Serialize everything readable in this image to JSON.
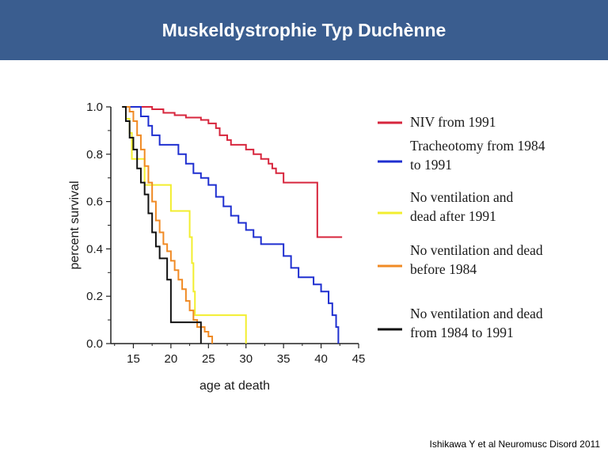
{
  "header": {
    "title": "Muskeldystrophie Typ Duchènne"
  },
  "citation": "Ishikawa Y et al Neuromusc Disord 2011",
  "chart_data": {
    "type": "line",
    "step": true,
    "xlabel": "age at death",
    "ylabel": "percent survival",
    "xlim": [
      12,
      45
    ],
    "ylim": [
      0,
      1
    ],
    "x_ticks": [
      15,
      20,
      25,
      30,
      35,
      40,
      45
    ],
    "y_ticks": [
      0.0,
      0.2,
      0.4,
      0.6,
      0.8,
      1.0
    ],
    "y_tick_labels": [
      "0.0",
      "0.2",
      "0.4",
      "0.6",
      "0.8",
      "1.0"
    ],
    "grid": false,
    "legend_position": "right",
    "series": [
      {
        "name_lines": [
          "NIV from 1991"
        ],
        "color": "#d7263d",
        "points": [
          [
            16,
            1.0
          ],
          [
            17.5,
            0.99
          ],
          [
            19,
            0.975
          ],
          [
            20.5,
            0.965
          ],
          [
            22,
            0.955
          ],
          [
            24,
            0.945
          ],
          [
            25,
            0.93
          ],
          [
            26,
            0.91
          ],
          [
            26.5,
            0.88
          ],
          [
            27.5,
            0.86
          ],
          [
            28,
            0.84
          ],
          [
            30,
            0.82
          ],
          [
            31,
            0.8
          ],
          [
            32,
            0.78
          ],
          [
            33,
            0.76
          ],
          [
            33.5,
            0.74
          ],
          [
            34,
            0.72
          ],
          [
            35,
            0.7
          ],
          [
            35,
            0.68
          ],
          [
            39.5,
            0.68
          ],
          [
            39.5,
            0.45
          ],
          [
            42.8,
            0.45
          ]
        ]
      },
      {
        "name_lines": [
          "Tracheotomy from 1984",
          "to 1991"
        ],
        "color": "#1f2fd0",
        "points": [
          [
            14,
            1.0
          ],
          [
            16,
            1.0
          ],
          [
            16,
            0.96
          ],
          [
            17,
            0.92
          ],
          [
            17.5,
            0.88
          ],
          [
            18.5,
            0.84
          ],
          [
            21,
            0.84
          ],
          [
            21,
            0.8
          ],
          [
            22,
            0.76
          ],
          [
            23,
            0.72
          ],
          [
            24,
            0.7
          ],
          [
            25,
            0.67
          ],
          [
            26,
            0.62
          ],
          [
            27,
            0.58
          ],
          [
            28,
            0.54
          ],
          [
            29,
            0.51
          ],
          [
            30,
            0.48
          ],
          [
            31,
            0.45
          ],
          [
            32,
            0.42
          ],
          [
            35,
            0.42
          ],
          [
            35,
            0.37
          ],
          [
            36,
            0.32
          ],
          [
            37,
            0.28
          ],
          [
            38,
            0.28
          ],
          [
            39,
            0.25
          ],
          [
            40,
            0.22
          ],
          [
            41,
            0.22
          ],
          [
            41,
            0.17
          ],
          [
            41.5,
            0.12
          ],
          [
            42,
            0.07
          ],
          [
            42.3,
            0.0
          ]
        ]
      },
      {
        "name_lines": [
          "No ventilation and",
          "dead after 1991"
        ],
        "color": "#f2ee2f",
        "points": [
          [
            13.5,
            1.0
          ],
          [
            14,
            0.95
          ],
          [
            14.5,
            0.89
          ],
          [
            14.8,
            0.78
          ],
          [
            16.5,
            0.78
          ],
          [
            16.5,
            0.67
          ],
          [
            20,
            0.67
          ],
          [
            20,
            0.56
          ],
          [
            22,
            0.56
          ],
          [
            22.5,
            0.45
          ],
          [
            22.8,
            0.34
          ],
          [
            23,
            0.22
          ],
          [
            23.2,
            0.12
          ],
          [
            30,
            0.12
          ],
          [
            30,
            0.0
          ]
        ]
      },
      {
        "name_lines": [
          "No ventilation and dead",
          "before 1984"
        ],
        "color": "#f08a24",
        "points": [
          [
            13.5,
            1.0
          ],
          [
            14.5,
            0.98
          ],
          [
            15,
            0.94
          ],
          [
            15.5,
            0.88
          ],
          [
            16,
            0.82
          ],
          [
            16.5,
            0.75
          ],
          [
            17,
            0.68
          ],
          [
            17.5,
            0.6
          ],
          [
            18,
            0.52
          ],
          [
            18.5,
            0.47
          ],
          [
            19,
            0.42
          ],
          [
            19.5,
            0.39
          ],
          [
            20,
            0.35
          ],
          [
            20.5,
            0.31
          ],
          [
            21,
            0.27
          ],
          [
            21.5,
            0.23
          ],
          [
            22,
            0.18
          ],
          [
            22.5,
            0.14
          ],
          [
            23,
            0.1
          ],
          [
            23.5,
            0.07
          ],
          [
            24.5,
            0.05
          ],
          [
            25,
            0.03
          ],
          [
            25.5,
            0.0
          ]
        ]
      },
      {
        "name_lines": [
          "No ventilation and dead",
          "from 1984 to 1991"
        ],
        "color": "#111111",
        "points": [
          [
            13.5,
            1.0
          ],
          [
            14,
            0.94
          ],
          [
            14.5,
            0.87
          ],
          [
            15,
            0.82
          ],
          [
            15.5,
            0.74
          ],
          [
            16,
            0.68
          ],
          [
            16.5,
            0.63
          ],
          [
            17,
            0.55
          ],
          [
            17.5,
            0.47
          ],
          [
            18,
            0.41
          ],
          [
            18.5,
            0.36
          ],
          [
            19.5,
            0.36
          ],
          [
            19.5,
            0.27
          ],
          [
            20,
            0.18
          ],
          [
            20,
            0.09
          ],
          [
            24,
            0.09
          ],
          [
            24,
            0.0
          ]
        ]
      }
    ]
  }
}
